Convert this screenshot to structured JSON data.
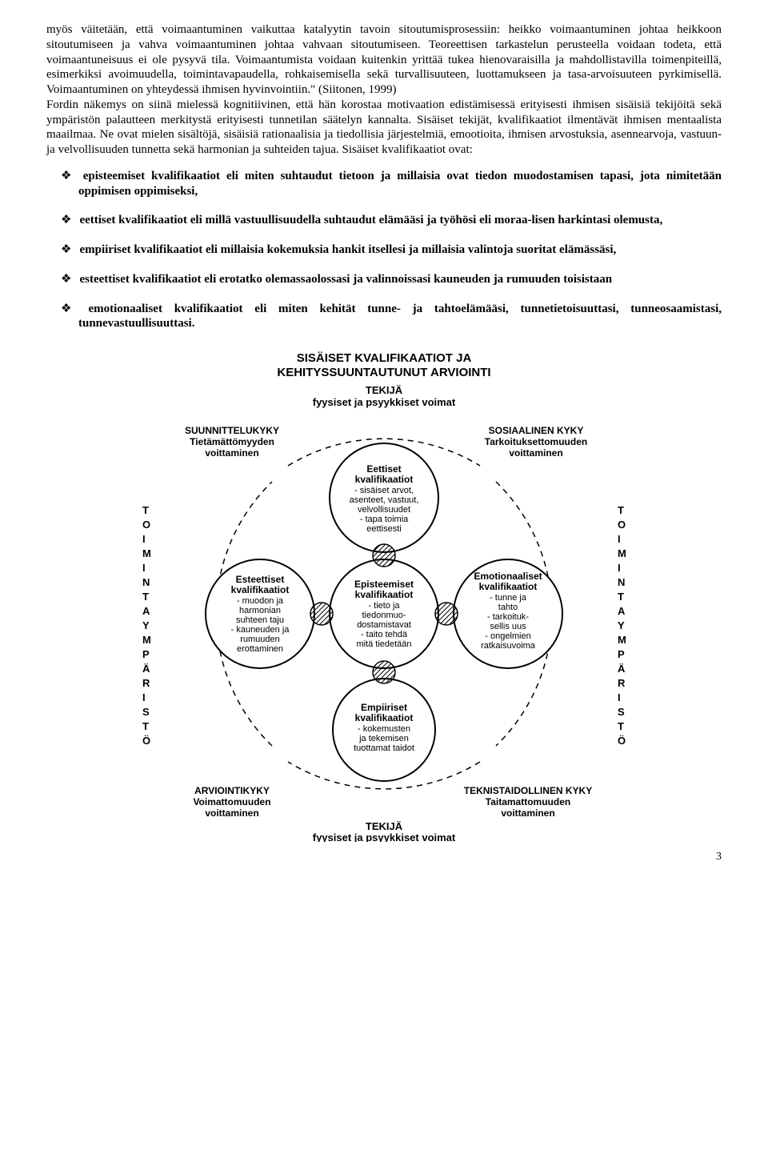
{
  "paragraph": "myös väitetään, että voimaantuminen vaikuttaa katalyytin tavoin sitoutumisprosessiin: heikko voimaantuminen johtaa heikkoon sitoutumiseen ja vahva voimaantuminen johtaa vahvaan sitoutumiseen. Teoreettisen tarkastelun perusteella voidaan todeta, että voimaantuneisuus ei ole pysyvä tila. Voimaantumista voidaan kuitenkin yrittää tukea hienovaraisilla ja mahdollistavilla toimenpiteillä, esimerkiksi avoimuudella, toimintavapaudella, rohkaisemisella sekä turvallisuuteen, luottamukseen ja tasa-arvoisuuteen pyrkimisellä. Voimaantuminen on yhteydessä ihmisen hyvinvointiin.\" (Siitonen, 1999)\nFordin näkemys on siinä mielessä kognitiivinen, että hän korostaa motivaation edistämisessä erityisesti ihmisen sisäisiä tekijöitä sekä ympäristön palautteen merkitystä erityisesti tunnetilan säätelyn kannalta. Sisäiset tekijät, kvalifikaatiot ilmentävät ihmisen mentaalista maailmaa. Ne ovat mielen sisältöjä, sisäisiä rationaalisia ja tiedollisia järjestelmiä, emootioita, ihmisen arvostuksia, asennearvoja, vastuun- ja velvollisuuden tunnetta sekä harmonian ja suhteiden tajua. Sisäiset kvalifikaatiot ovat:",
  "bullets": [
    "episteemiset kvalifikaatiot eli miten suhtaudut tietoon ja millaisia ovat tiedon muodostamisen tapasi, jota nimitetään oppimisen oppimiseksi,",
    "eettiset kvalifikaatiot eli millä vastuullisuudella suhtaudut elämääsi ja työhösi eli moraa-lisen harkintasi olemusta,",
    "empiiriset kvalifikaatiot eli millaisia kokemuksia hankit itsellesi ja millaisia valintoja suoritat elämässäsi,",
    "esteettiset kvalifikaatiot eli erotatko olemassaolossasi ja valinnoissasi kauneuden ja rumuuden toisistaan",
    "emotionaaliset kvalifikaatiot eli miten kehität tunne- ja tahtoelämääsi, tunnetietoisuuttasi, tunneosaamistasi, tunnevastuullisuuttasi."
  ],
  "diagram": {
    "title_line1": "SISÄISET KVALIFIKAATIOT JA",
    "title_line2": "KEHITYSSUUNTAUTUNUT ARVIOINTI",
    "top_sub1": "TEKIJÄ",
    "top_sub2": "fyysiset ja psyykkiset voimat",
    "bottom_sub1": "TEKIJÄ",
    "bottom_sub2": "fyysiset ja psyykkiset voimat",
    "side_text": "TOIMINTAYMPÄRISTÖ",
    "corner_tl_head": "SUUNNITTELUKYKY",
    "corner_tl_l1": "Tietämättömyyden",
    "corner_tl_l2": "voittaminen",
    "corner_tr_head": "SOSIAALINEN KYKY",
    "corner_tr_l1": "Tarkoituksettomuuden",
    "corner_tr_l2": "voittaminen",
    "corner_bl_head": "ARVIOINTIKYKY",
    "corner_bl_l1": "Voimattomuuden",
    "corner_bl_l2": "voittaminen",
    "corner_br_head": "TEKNISTAIDOLLINEN KYKY",
    "corner_br_l1": "Taitamattomuuden",
    "corner_br_l2": "voittaminen",
    "node_top": {
      "h": "Eettiset",
      "l": [
        "kvalifikaatiot",
        "- sisäiset arvot,",
        "asenteet, vastuut,",
        "velvollisuudet",
        "- tapa toimia",
        "eettisesti"
      ]
    },
    "node_left": {
      "h": "Esteettiset",
      "l": [
        "kvalifikaatiot",
        "- muodon ja",
        "harmonian",
        "suhteen taju",
        "- kauneuden ja",
        "rumuuden",
        "erottaminen"
      ]
    },
    "node_center": {
      "h": "Episteemiset",
      "l": [
        "kvalifikaatiot",
        "- tieto ja",
        "tiedonmuo-",
        "dostamistavat",
        "- taito tehdä",
        "mitä tiedetään"
      ]
    },
    "node_right": {
      "h": "Emotionaaliset",
      "l": [
        "kvalifikaatiot",
        "- tunne ja",
        "tahto",
        "- tarkoituk-",
        "sellis  uus",
        "- ongelmien",
        "ratkaisuvoima"
      ]
    },
    "node_bottom": {
      "h": "Empiiriset",
      "l": [
        "kvalifikaatiot",
        "- kokemusten",
        "ja tekemisen",
        "tuottamat taidot"
      ]
    },
    "colors": {
      "stroke": "#000000",
      "fill": "#ffffff",
      "hatch": "#000000"
    }
  },
  "page_number": "3"
}
